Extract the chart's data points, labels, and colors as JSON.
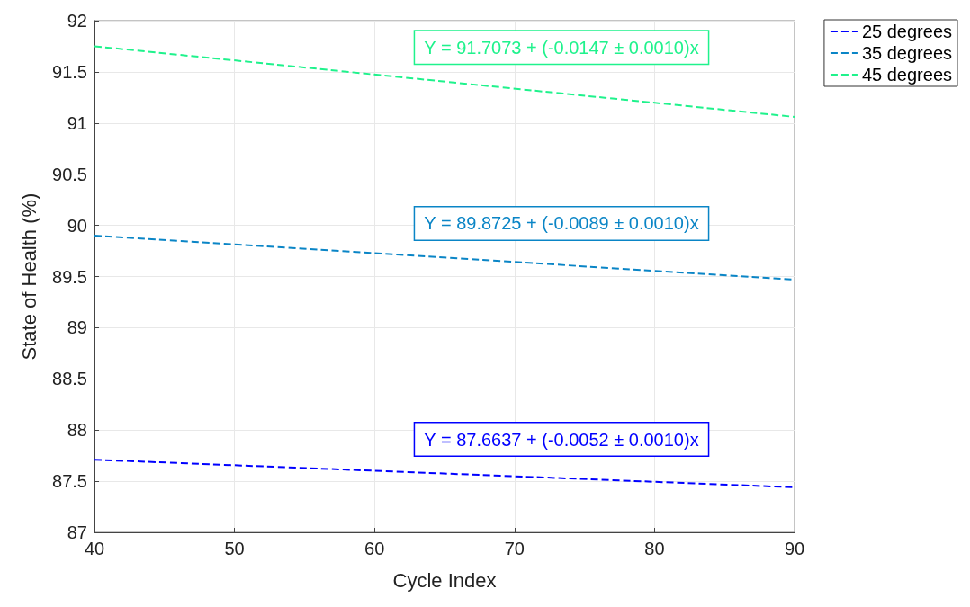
{
  "chart_data": {
    "type": "line",
    "xlabel": "Cycle Index",
    "ylabel": "State of Health (%)",
    "x": [
      40,
      90
    ],
    "series": [
      {
        "name": "25 degrees",
        "color": "#0000ff",
        "values": [
          87.71,
          87.44
        ]
      },
      {
        "name": "35 degrees",
        "color": "#0a85c6",
        "values": [
          89.9,
          89.47
        ]
      },
      {
        "name": "45 degrees",
        "color": "#1ff28c",
        "values": [
          91.75,
          91.06
        ]
      }
    ],
    "annotations": [
      "Y = 87.6637 + (-0.0052 ± 0.0010)x",
      "Y = 89.8725 + (-0.0089 ± 0.0010)x",
      "Y = 91.7073 + (-0.0147 ± 0.0010)x"
    ],
    "xlim": [
      40,
      90
    ],
    "xticks": [
      40,
      50,
      60,
      70,
      80,
      90
    ],
    "ylim": [
      87,
      92
    ],
    "yticks": [
      87,
      87.5,
      88,
      88.5,
      89,
      89.5,
      90,
      90.5,
      91,
      91.5,
      92
    ],
    "grid": true,
    "legend": "top right",
    "marker": "none",
    "line_style": "dashed"
  }
}
